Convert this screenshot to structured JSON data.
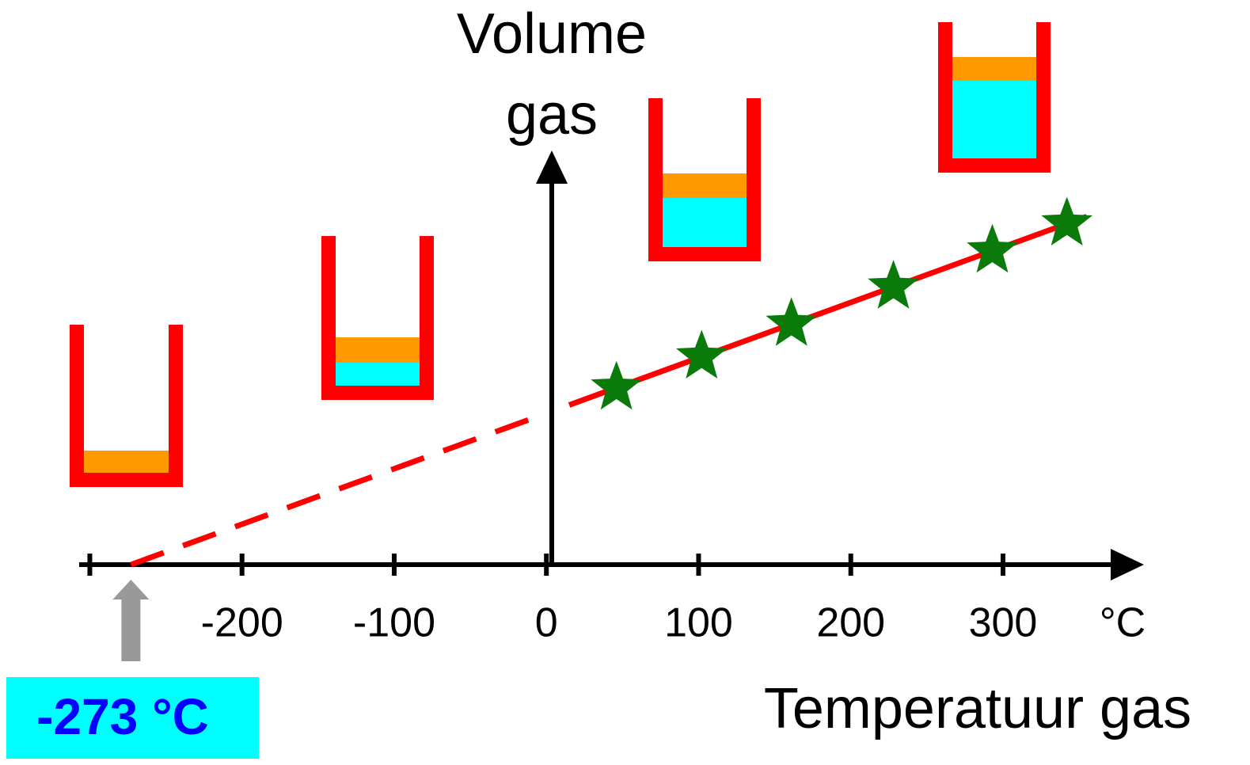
{
  "chart_data": {
    "type": "scatter",
    "y_label": [
      "Volume",
      "gas"
    ],
    "x_label": "Temperatuur gas",
    "x_unit": "°C",
    "xlim": [
      -307,
      390
    ],
    "ylim": [
      0,
      750
    ],
    "xticks": [
      {
        "value": -300,
        "label": null
      },
      -200,
      -100,
      0,
      100,
      200,
      300
    ],
    "series": [
      {
        "color": "#0a7a0a",
        "x": [
          46,
          102,
          161,
          228,
          293,
          342
        ],
        "values": [
          319,
          375,
          434,
          501,
          566,
          615
        ]
      }
    ],
    "fit": {
      "color": "#ff0000",
      "dashed": {
        "x": [
          -273,
          -5
        ],
        "y": [
          0,
          268
        ]
      },
      "solid": {
        "x": [
          15,
          355
        ],
        "y": [
          288,
          628
        ]
      }
    },
    "annotation": {
      "text": "-273 °C",
      "x": -273
    }
  }
}
